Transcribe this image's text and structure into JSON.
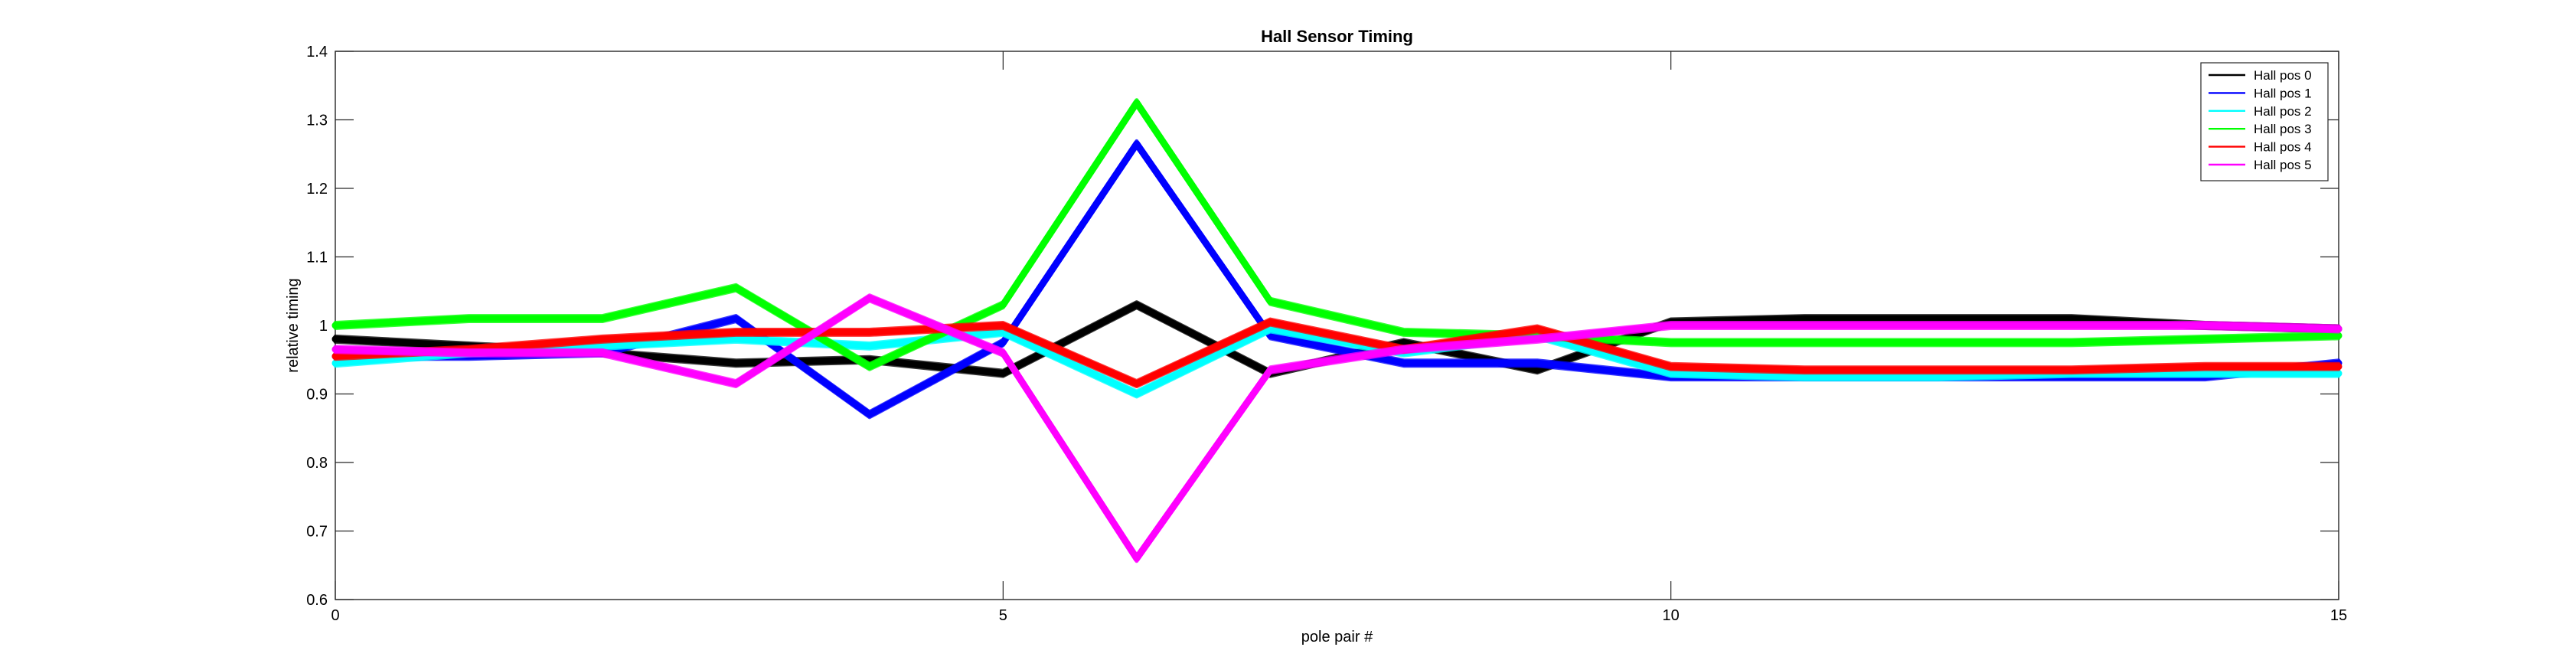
{
  "chart_data": {
    "type": "line",
    "title": "Hall Sensor Timing",
    "xlabel": "pole pair #",
    "ylabel": "relative timing",
    "xlim": [
      0,
      15
    ],
    "ylim": [
      0.6,
      1.4
    ],
    "xticks": [
      0,
      5,
      10,
      15
    ],
    "yticks": [
      0.6,
      0.7,
      0.8,
      0.9,
      1.0,
      1.1,
      1.2,
      1.3,
      1.4
    ],
    "ytick_labels": [
      "0.6",
      "0.7",
      "0.8",
      "0.9",
      "1",
      "1.1",
      "1.2",
      "1.3",
      "1.4"
    ],
    "grid": false,
    "legend_position": "top-right",
    "x": [
      0,
      1,
      2,
      3,
      4,
      5,
      6,
      7,
      8,
      9,
      10,
      11,
      12,
      13,
      14,
      15
    ],
    "series": [
      {
        "name": "Hall pos 0",
        "color": "#000000",
        "values": [
          0.98,
          0.97,
          0.96,
          0.945,
          0.95,
          0.93,
          1.03,
          0.93,
          0.975,
          0.935,
          1.005,
          1.01,
          1.01,
          1.01,
          1.0,
          0.995
        ]
      },
      {
        "name": "Hall pos 1",
        "color": "#0000ff",
        "values": [
          0.955,
          0.955,
          0.96,
          1.01,
          0.87,
          0.975,
          1.265,
          0.985,
          0.945,
          0.945,
          0.925,
          0.925,
          0.925,
          0.925,
          0.925,
          0.945
        ]
      },
      {
        "name": "Hall pos 2",
        "color": "#00ffff",
        "values": [
          0.945,
          0.96,
          0.97,
          0.98,
          0.97,
          0.99,
          0.9,
          0.995,
          0.96,
          0.985,
          0.93,
          0.925,
          0.925,
          0.93,
          0.93,
          0.93
        ]
      },
      {
        "name": "Hall pos 3",
        "color": "#00ff00",
        "values": [
          1.0,
          1.01,
          1.01,
          1.055,
          0.94,
          1.03,
          1.325,
          1.035,
          0.99,
          0.985,
          0.975,
          0.975,
          0.975,
          0.975,
          0.98,
          0.985
        ]
      },
      {
        "name": "Hall pos 4",
        "color": "#ff0000",
        "values": [
          0.955,
          0.965,
          0.98,
          0.99,
          0.99,
          1.0,
          0.915,
          1.005,
          0.965,
          0.995,
          0.94,
          0.935,
          0.935,
          0.935,
          0.94,
          0.94
        ]
      },
      {
        "name": "Hall pos 5",
        "color": "#ff00ff",
        "values": [
          0.965,
          0.96,
          0.96,
          0.915,
          1.04,
          0.96,
          0.66,
          0.935,
          0.965,
          0.98,
          1.0,
          1.0,
          1.0,
          1.0,
          1.0,
          0.995
        ]
      }
    ]
  }
}
